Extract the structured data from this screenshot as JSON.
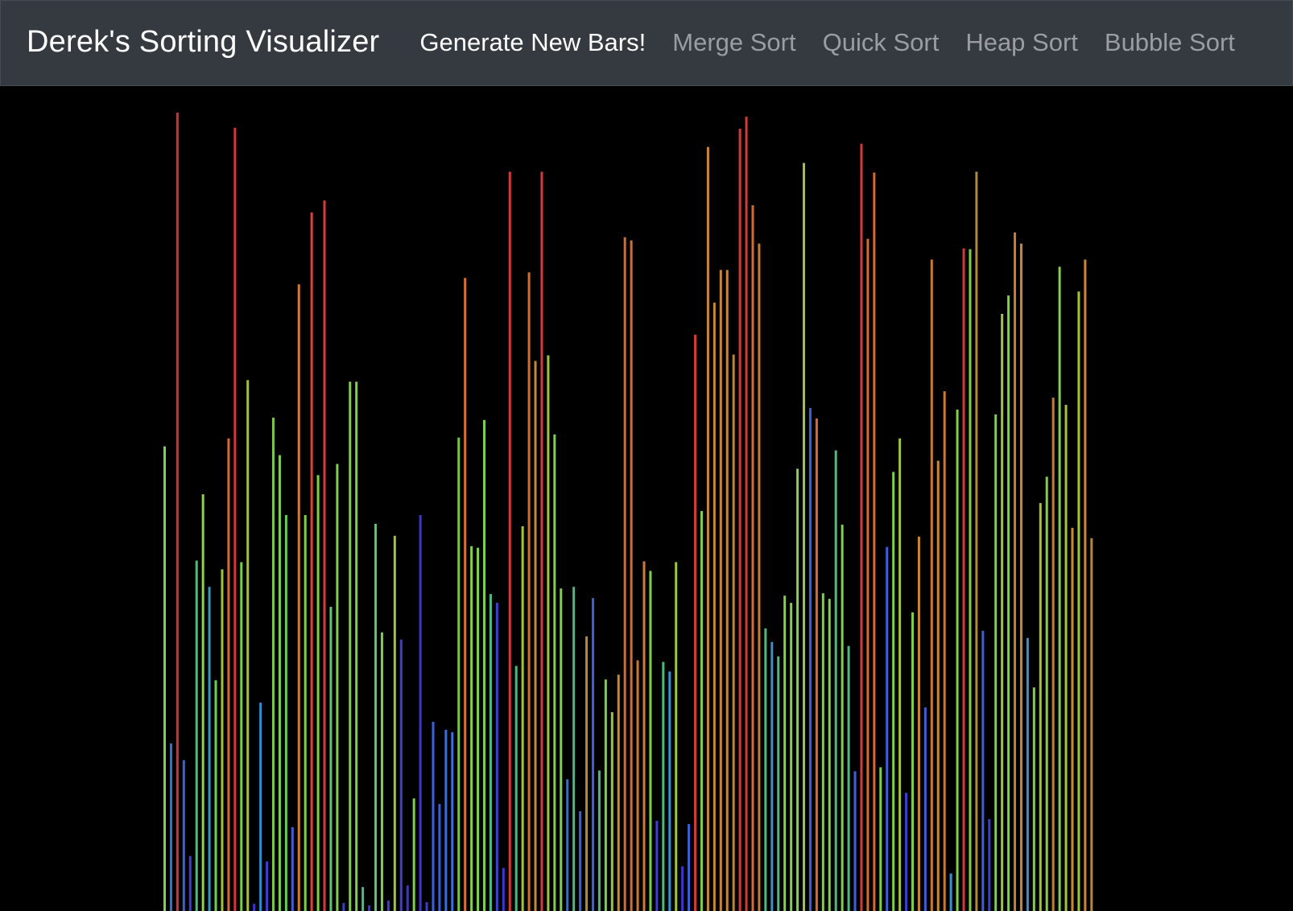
{
  "navbar": {
    "brand": "Derek's Sorting Visualizer",
    "items": [
      {
        "label": "Generate New Bars!",
        "active": true
      },
      {
        "label": "Merge Sort",
        "active": false
      },
      {
        "label": "Quick Sort",
        "active": false
      },
      {
        "label": "Heap Sort",
        "active": false
      },
      {
        "label": "Bubble Sort",
        "active": false
      }
    ]
  },
  "colors": {
    "navbar_bg": "#343a40",
    "brand_text": "#ffffff",
    "nav_inactive": "#9a9ea3",
    "canvas_bg": "#000000"
  },
  "bars": {
    "max_value": 1000,
    "values": [
      582,
      210,
      1000,
      189,
      69,
      439,
      522,
      406,
      289,
      428,
      592,
      981,
      437,
      665,
      9,
      261,
      62,
      618,
      571,
      496,
      105,
      785,
      496,
      875,
      546,
      890,
      381,
      560,
      10,
      663,
      663,
      30,
      7,
      485,
      349,
      13,
      470,
      340,
      32,
      141,
      496,
      11,
      237,
      134,
      227,
      224,
      593,
      793,
      457,
      455,
      615,
      397,
      386,
      54,
      926,
      307,
      482,
      800,
      689,
      926,
      696,
      597,
      404,
      165,
      406,
      125,
      344,
      392,
      176,
      290,
      249,
      296,
      844,
      840,
      314,
      438,
      426,
      113,
      312,
      300,
      437,
      56,
      109,
      722,
      501,
      957,
      762,
      803,
      803,
      697,
      980,
      995,
      884,
      836,
      354,
      337,
      319,
      395,
      386,
      554,
      937,
      630,
      617,
      398,
      391,
      577,
      484,
      332,
      175,
      961,
      842,
      925,
      180,
      456,
      550,
      592,
      148,
      374,
      469,
      255,
      816,
      564,
      651,
      47,
      628,
      830,
      829,
      926,
      351,
      115,
      622,
      748,
      771,
      850,
      836,
      342,
      280,
      511,
      544,
      643,
      807,
      634,
      480,
      776,
      816,
      467
    ],
    "colors": [
      "#7ed249",
      "#3a6fd8",
      "#d62d3a",
      "#3f5fd8",
      "#3b3fcf",
      "#4fbb7e",
      "#8ed548",
      "#2f9bc5",
      "#6fcf57",
      "#a1c43b",
      "#d36b36",
      "#d8343a",
      "#78d04a",
      "#a4c03e",
      "#3f34cf",
      "#2a8dcd",
      "#3a3fcf",
      "#7ac54c",
      "#80d04b",
      "#67cc56",
      "#3f5fd6",
      "#d3793a",
      "#7ecf49",
      "#d8443a",
      "#7ed249",
      "#d63a3e",
      "#5fc577",
      "#7ecf49",
      "#3b3fcf",
      "#7ecf49",
      "#82d04c",
      "#4fbb7e",
      "#3f34cf",
      "#58c76a",
      "#7ad048",
      "#3f3fcf",
      "#a0c43b",
      "#3f3fcf",
      "#3f34cf",
      "#7ecf49",
      "#3f34cf",
      "#3a3fcf",
      "#3f5fd8",
      "#3b5fd8",
      "#3a6fd8",
      "#3f6fd8",
      "#7ac548",
      "#d9703a",
      "#86d04a",
      "#86d04a",
      "#7ecf49",
      "#4fbb7e",
      "#3f3fcf",
      "#3f34cf",
      "#d33a3a",
      "#4bba7e",
      "#a1c43b",
      "#cf6f34",
      "#c8873a",
      "#d63a3e",
      "#a1c43b",
      "#7ecf49",
      "#82d04c",
      "#2f6fd8",
      "#4bba7e",
      "#3f5fd8",
      "#b48839",
      "#3f5fd8",
      "#4bba7e",
      "#7ecf49",
      "#a1c43b",
      "#c88a35",
      "#d36b36",
      "#d36b36",
      "#c87a30",
      "#d3793a",
      "#7ecf49",
      "#3f3fcf",
      "#4bba7e",
      "#3a8fcd",
      "#a1c43b",
      "#3f34cf",
      "#3f5fd8",
      "#d33a3a",
      "#7ecf49",
      "#c8873a",
      "#c88a35",
      "#c8873a",
      "#c8873a",
      "#b48839",
      "#d33a3a",
      "#d33a3a",
      "#d36b36",
      "#c87a30",
      "#4bba7e",
      "#3a8fcd",
      "#4bba7e",
      "#86d04a",
      "#7ecf49",
      "#86d04a",
      "#a1c43b",
      "#3f5fd8",
      "#d36b36",
      "#7ecf49",
      "#82d04c",
      "#4fbb7e",
      "#7ecf49",
      "#4bba7e",
      "#3f5fd8",
      "#d33a3a",
      "#cf6f34",
      "#d36b36",
      "#7ecf49",
      "#3f5fd8",
      "#7ecf49",
      "#a1c43b",
      "#3f3fcf",
      "#7ecf49",
      "#c8873a",
      "#3f5fd8",
      "#c87a30",
      "#c88a35",
      "#c87a30",
      "#3a8fcd",
      "#82d04c",
      "#d33a3a",
      "#7ecf49",
      "#b48839",
      "#3f5fd8",
      "#3f3fcf",
      "#7ecf49",
      "#a1c43b",
      "#7ecf49",
      "#c87a30",
      "#c8873a",
      "#3a8fcd",
      "#7ecf49",
      "#a1c43b",
      "#7ecf49",
      "#c87a30",
      "#82d04c",
      "#a1c43b",
      "#c88a35",
      "#a1c43b",
      "#c8873a",
      "#b48839"
    ]
  }
}
